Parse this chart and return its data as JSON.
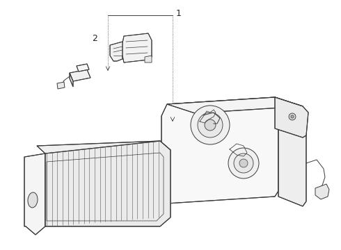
{
  "bg_color": "#ffffff",
  "line_color": "#3a3a3a",
  "line_width": 0.7,
  "label1": "1",
  "label2": "2",
  "fig_width": 4.9,
  "fig_height": 3.6,
  "dpi": 100
}
